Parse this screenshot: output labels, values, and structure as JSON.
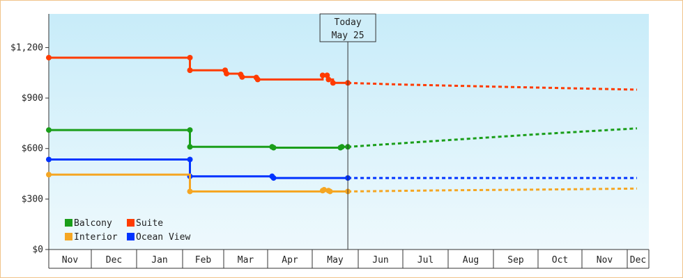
{
  "chart_data": {
    "type": "line",
    "title": "",
    "xlabel": "",
    "ylabel": "",
    "x_tick_labels": [
      "Nov",
      "Dec",
      "Jan",
      "Feb",
      "Mar",
      "Apr",
      "May",
      "Jun",
      "Jul",
      "Aug",
      "Sep",
      "Oct",
      "Nov",
      "Dec"
    ],
    "y_ticks": [
      {
        "value": 0,
        "label": "$0"
      },
      {
        "value": 300,
        "label": "$300"
      },
      {
        "value": 600,
        "label": "$600"
      },
      {
        "value": 900,
        "label": "$900"
      },
      {
        "value": 1200,
        "label": "$1,200"
      }
    ],
    "ylim": [
      0,
      1400
    ],
    "x_range": [
      "Nov 1",
      "Dec 31"
    ],
    "today": {
      "line1": "Today",
      "line2": "May 25",
      "x": "May 25"
    },
    "background_gradient": [
      "#c8ecf9",
      "#eef9fd"
    ],
    "legend_placement": "bottom-left",
    "series": [
      {
        "name": "Suite",
        "color": "#ff3b00",
        "history": [
          [
            "Nov 1",
            1140
          ],
          [
            "Feb 6",
            1140
          ],
          [
            "Feb 6",
            1065
          ],
          [
            "Mar 2",
            1065
          ],
          [
            "Mar 2",
            1045
          ],
          [
            "Mar 13",
            1045
          ],
          [
            "Mar 13",
            1025
          ],
          [
            "Mar 24",
            1025
          ],
          [
            "Mar 24",
            1010
          ],
          [
            "May 8",
            1010
          ],
          [
            "May 8",
            1035
          ],
          [
            "May 11",
            1035
          ],
          [
            "May 11",
            1010
          ],
          [
            "May 15",
            1010
          ],
          [
            "May 15",
            990
          ],
          [
            "May 25",
            990
          ]
        ],
        "markers": [
          [
            "Nov 1",
            1140
          ],
          [
            "Feb 6",
            1140
          ],
          [
            "Feb 6",
            1065
          ],
          [
            "Mar 2",
            1065
          ],
          [
            "Mar 3",
            1045
          ],
          [
            "Mar 13",
            1040
          ],
          [
            "Mar 14",
            1025
          ],
          [
            "Mar 24",
            1022
          ],
          [
            "Mar 25",
            1010
          ],
          [
            "May 8",
            1035
          ],
          [
            "May 11",
            1035
          ],
          [
            "May 12",
            1010
          ],
          [
            "May 15",
            990
          ],
          [
            "May 25",
            990
          ]
        ],
        "forecast": [
          [
            "May 25",
            990
          ],
          [
            "Jul 1",
            980
          ],
          [
            "Sep 15",
            965
          ],
          [
            "Dec 15",
            950
          ]
        ]
      },
      {
        "name": "Balcony",
        "color": "#1a9e1a",
        "history": [
          [
            "Nov 1",
            710
          ],
          [
            "Feb 6",
            710
          ],
          [
            "Feb 6",
            610
          ],
          [
            "Apr 4",
            610
          ],
          [
            "Apr 4",
            605
          ],
          [
            "May 21",
            605
          ],
          [
            "May 21",
            610
          ],
          [
            "May 25",
            610
          ]
        ],
        "markers": [
          [
            "Nov 1",
            710
          ],
          [
            "Feb 6",
            710
          ],
          [
            "Feb 6",
            610
          ],
          [
            "Apr 4",
            610
          ],
          [
            "Apr 5",
            605
          ],
          [
            "May 20",
            605
          ],
          [
            "May 21",
            610
          ],
          [
            "May 25",
            610
          ]
        ],
        "forecast": [
          [
            "May 25",
            610
          ],
          [
            "Aug 1",
            650
          ],
          [
            "Oct 1",
            685
          ],
          [
            "Dec 15",
            720
          ]
        ]
      },
      {
        "name": "Ocean View",
        "color": "#0033ff",
        "history": [
          [
            "Nov 1",
            535
          ],
          [
            "Feb 6",
            535
          ],
          [
            "Feb 6",
            435
          ],
          [
            "Apr 4",
            435
          ],
          [
            "Apr 4",
            425
          ],
          [
            "May 25",
            425
          ]
        ],
        "markers": [
          [
            "Nov 1",
            535
          ],
          [
            "Feb 6",
            535
          ],
          [
            "Feb 6",
            435
          ],
          [
            "Apr 4",
            435
          ],
          [
            "Apr 5",
            425
          ],
          [
            "May 25",
            425
          ]
        ],
        "forecast": [
          [
            "May 25",
            425
          ],
          [
            "Dec 15",
            425
          ]
        ]
      },
      {
        "name": "Interior",
        "color": "#f5a623",
        "history": [
          [
            "Nov 1",
            445
          ],
          [
            "Feb 6",
            445
          ],
          [
            "Feb 6",
            345
          ],
          [
            "May 8",
            345
          ],
          [
            "May 8",
            355
          ],
          [
            "May 12",
            355
          ],
          [
            "May 12",
            345
          ],
          [
            "May 25",
            345
          ]
        ],
        "markers": [
          [
            "Nov 1",
            445
          ],
          [
            "Feb 6",
            345
          ],
          [
            "May 8",
            350
          ],
          [
            "May 9",
            355
          ],
          [
            "May 12",
            350
          ],
          [
            "May 13",
            345
          ],
          [
            "May 25",
            345
          ]
        ],
        "forecast": [
          [
            "May 25",
            345
          ],
          [
            "Aug 1",
            352
          ],
          [
            "Oct 1",
            356
          ],
          [
            "Dec 15",
            362
          ]
        ]
      }
    ],
    "legend": [
      {
        "name": "Balcony",
        "color": "#1a9e1a"
      },
      {
        "name": "Suite",
        "color": "#ff3b00"
      },
      {
        "name": "Interior",
        "color": "#f5a623"
      },
      {
        "name": "Ocean View",
        "color": "#0033ff"
      }
    ]
  }
}
